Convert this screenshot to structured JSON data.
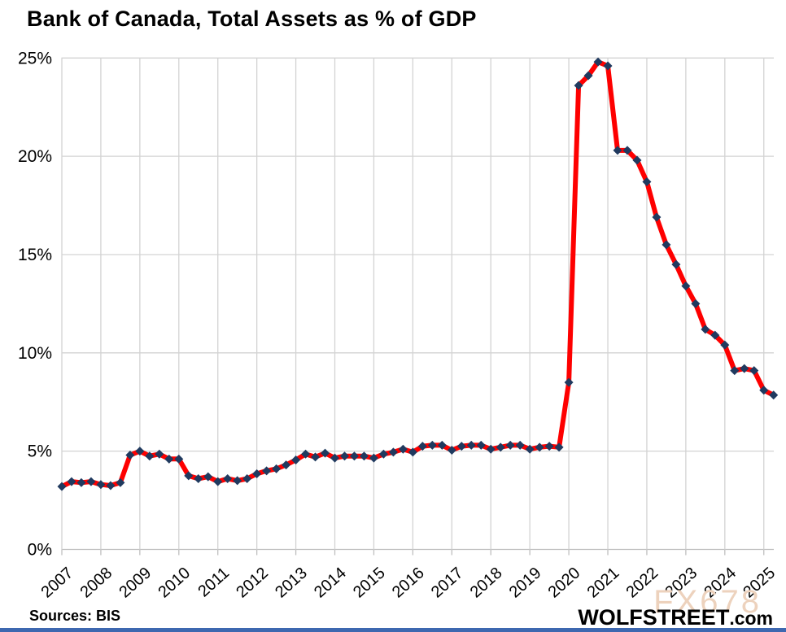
{
  "title": "Bank of Canada, Total Assets as % of GDP",
  "source_note": "Sources: BIS",
  "branding": {
    "site": "WOLFSTREET",
    "site_suffix": ".com",
    "watermark": "FX678"
  },
  "colors": {
    "line": "#FE0000",
    "marker": "#203A5F",
    "grid": "#D3D3D3",
    "axis": "#BFBFBF",
    "watermark": "#EDD2BD",
    "bottom_bar": "#3E68B0",
    "text": "#000000"
  },
  "chart_data": {
    "type": "line",
    "title": "Bank of Canada, Total Assets as % of GDP",
    "frequency": "quarterly",
    "x_start_label": "2007-Q1",
    "x_end_label": "2025-Q2",
    "x_tick_labels": [
      "2007",
      "2008",
      "2009",
      "2010",
      "2011",
      "2012",
      "2013",
      "2014",
      "2015",
      "2016",
      "2017",
      "2018",
      "2019",
      "2020",
      "2021",
      "2022",
      "2023",
      "2024",
      "2025"
    ],
    "y_tick_labels": [
      "0%",
      "5%",
      "10%",
      "15%",
      "20%",
      "25%"
    ],
    "y_tick_values": [
      0,
      5,
      10,
      15,
      20,
      25
    ],
    "ylim": [
      0,
      25
    ],
    "grid": true,
    "legend": "none",
    "series": [
      {
        "name": "Total assets as % of GDP",
        "values": [
          3.2,
          3.45,
          3.4,
          3.45,
          3.3,
          3.25,
          3.4,
          4.8,
          5.0,
          4.75,
          4.85,
          4.6,
          4.6,
          3.75,
          3.6,
          3.7,
          3.45,
          3.6,
          3.5,
          3.6,
          3.85,
          4.0,
          4.1,
          4.3,
          4.55,
          4.85,
          4.7,
          4.9,
          4.65,
          4.75,
          4.75,
          4.75,
          4.65,
          4.85,
          4.95,
          5.1,
          4.95,
          5.25,
          5.3,
          5.3,
          5.05,
          5.25,
          5.3,
          5.3,
          5.1,
          5.2,
          5.3,
          5.3,
          5.1,
          5.2,
          5.25,
          5.2,
          8.5,
          23.6,
          24.1,
          24.8,
          24.6,
          20.3,
          20.3,
          19.8,
          18.7,
          16.9,
          15.5,
          14.5,
          13.4,
          12.5,
          11.2,
          10.9,
          10.4,
          9.1,
          9.2,
          9.1,
          8.1,
          7.85
        ]
      }
    ]
  }
}
